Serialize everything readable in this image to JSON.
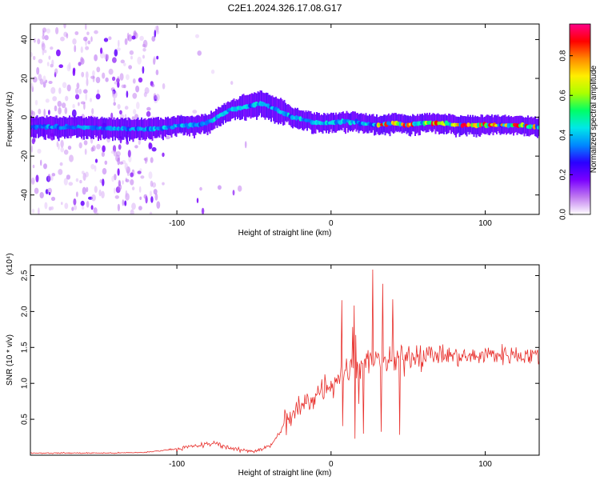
{
  "title": "C2E1.2024.326.17.08.G17",
  "chart_data": [
    {
      "type": "heatmap",
      "xlabel": "Height of straight line (km)",
      "ylabel": "Frequency (Hz)",
      "xlim": [
        -195,
        135
      ],
      "ylim": [
        -50,
        48
      ],
      "xticks": [
        -100,
        0,
        100
      ],
      "yticks": [
        -40,
        -20,
        0,
        20,
        40
      ],
      "colorbar": {
        "label": "Normalized spectral amplitude",
        "range": [
          0,
          0.96
        ],
        "ticks": [
          0.0,
          0.2,
          0.4,
          0.6,
          0.8
        ],
        "colormap": [
          "#ffffff",
          "#c07af0",
          "#7a00ff",
          "#2a00ff",
          "#0088ff",
          "#00e8e8",
          "#00ff66",
          "#aaff00",
          "#ffee00",
          "#ff8800",
          "#ff0000",
          "#ff0088"
        ]
      },
      "ridge": {
        "x": [
          -195,
          -180,
          -160,
          -140,
          -125,
          -115,
          -105,
          -95,
          -88,
          -80,
          -72,
          -65,
          -58,
          -52,
          -46,
          -42,
          -36,
          -30,
          -25,
          -20,
          -15,
          -8,
          0,
          10,
          20,
          30,
          40,
          50,
          60,
          70,
          80,
          90,
          100,
          110,
          120,
          135
        ],
        "y": [
          -5,
          -5,
          -5,
          -6,
          -6,
          -6,
          -5,
          -4,
          -4,
          -3,
          1,
          4,
          5,
          6,
          7,
          6,
          4,
          2,
          0,
          -1,
          -2,
          -3,
          -3,
          -2,
          -3,
          -4,
          -3,
          -4,
          -3,
          -3,
          -4,
          -4,
          -4,
          -4,
          -4,
          -5
        ]
      }
    },
    {
      "type": "line",
      "xlabel": "Height of straight line (km)",
      "ylabel": "SNR (10 * v/v)",
      "y_multiplier": "(x10⁴)",
      "xlim": [
        -195,
        135
      ],
      "ylim": [
        0,
        2.65
      ],
      "xticks": [
        -100,
        0,
        100
      ],
      "yticks": [
        0.5,
        1.0,
        1.5,
        2.0,
        2.5
      ],
      "yticklabels": [
        "0.5",
        "1.0",
        "1.5",
        "2.0",
        "2.5"
      ],
      "series": [
        {
          "color": "#e8302c",
          "x": [
            -195,
            -180,
            -160,
            -140,
            -120,
            -100,
            -90,
            -80,
            -75,
            -70,
            -60,
            -50,
            -40,
            -35,
            -30,
            -25,
            -20,
            -15,
            -10,
            -5,
            0,
            5,
            10,
            15,
            20,
            25,
            30,
            35,
            40,
            45,
            50,
            55,
            60,
            70,
            80,
            90,
            100,
            110,
            120,
            135
          ],
          "y": [
            0.03,
            0.03,
            0.03,
            0.03,
            0.04,
            0.09,
            0.12,
            0.15,
            0.17,
            0.13,
            0.07,
            0.06,
            0.12,
            0.25,
            0.45,
            0.55,
            0.65,
            0.75,
            0.85,
            0.95,
            1.0,
            1.1,
            1.15,
            1.2,
            1.25,
            1.3,
            1.35,
            1.3,
            1.3,
            1.35,
            1.4,
            1.4,
            1.4,
            1.4,
            1.38,
            1.36,
            1.4,
            1.4,
            1.4,
            1.38
          ]
        }
      ]
    }
  ]
}
